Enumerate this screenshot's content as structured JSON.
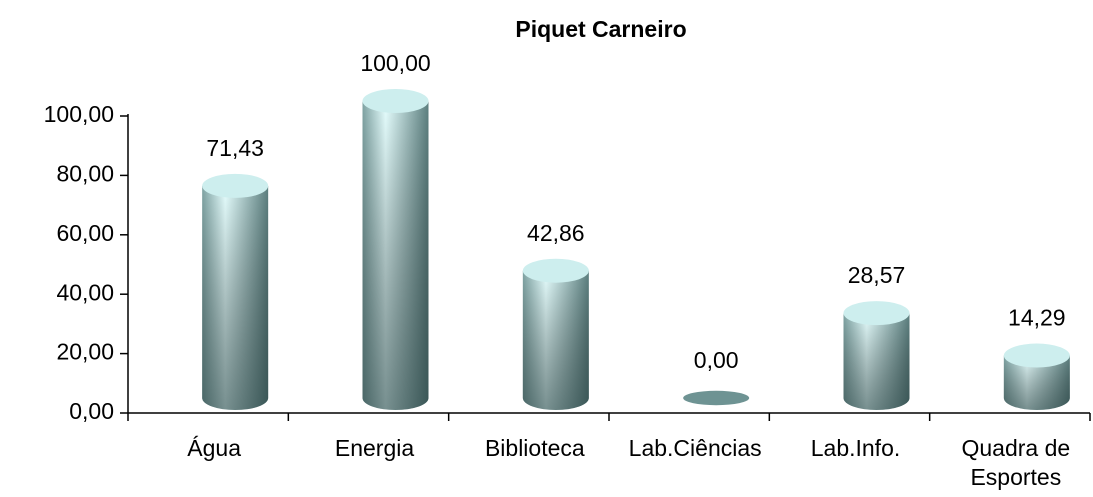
{
  "chart_data": {
    "type": "bar",
    "title": "Piquet Carneiro",
    "categories": [
      "Água",
      "Energia",
      "Biblioteca",
      "Lab.Ciências",
      "Lab.Info.",
      "Quadra de Esportes"
    ],
    "values": [
      71.43,
      100,
      42.86,
      0,
      28.57,
      14.29
    ],
    "value_labels": [
      "71,43",
      "100,00",
      "42,86",
      "0,00",
      "28,57",
      "14,29"
    ],
    "color": "#a8d8d8",
    "ylim": [
      0,
      100
    ],
    "yticks": [
      {
        "value": 0,
        "label": "0,00"
      },
      {
        "value": 20,
        "label": "20,00"
      },
      {
        "value": 40,
        "label": "40,00"
      },
      {
        "value": 60,
        "label": "60,00"
      },
      {
        "value": 80,
        "label": "80,00"
      },
      {
        "value": 100,
        "label": "100,00"
      }
    ]
  }
}
